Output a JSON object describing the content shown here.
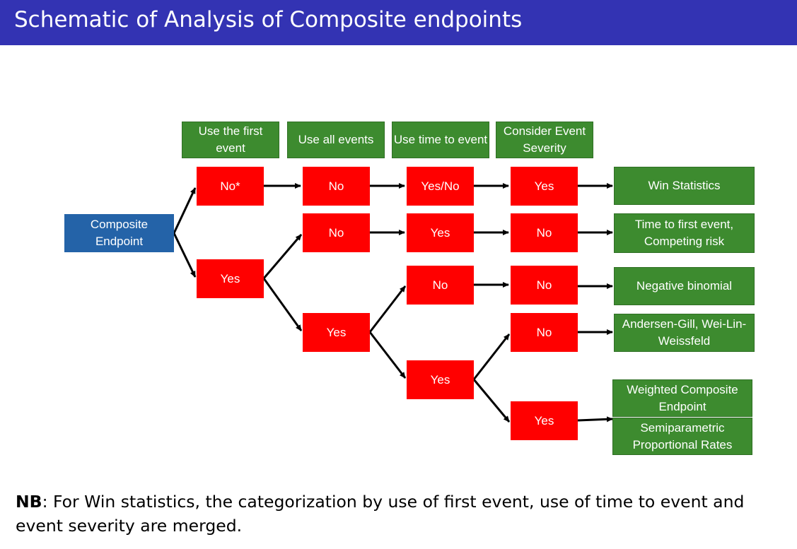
{
  "title": "Schematic of Analysis of Composite endpoints",
  "headers": [
    "Use the first event",
    "Use all events",
    "Use time to event",
    "Consider Event Severity"
  ],
  "root": "Composite Endpoint",
  "nodes": {
    "c1_no": "No*",
    "c1_yes": "Yes",
    "c2_top_no": "No",
    "c2_mid_no": "No",
    "c2_yes": "Yes",
    "c3_top": "Yes/No",
    "c3_mid": "Yes",
    "c3_no": "No",
    "c3_yes": "Yes",
    "c4_r1": "Yes",
    "c4_r2": "No",
    "c4_r3": "No",
    "c4_r4": "No",
    "c4_r5": "Yes"
  },
  "outcomes": {
    "r1": "Win Statistics",
    "r2": "Time to first event, Competing risk",
    "r3": "Negative binomial",
    "r4": "Andersen-Gill, Wei-Lin-Weissfeld",
    "r5a": "Weighted Composite Endpoint",
    "r5b": "Semiparametric Proportional Rates"
  },
  "note": {
    "label": "NB",
    "text": ": For Win statistics, the categorization by use of first event, use of time to event and event severity are merged."
  },
  "colors": {
    "title_bar": "#3333b3",
    "header_green": "#3d8b2f",
    "node_red": "#ff0000",
    "root_blue": "#2463a8"
  }
}
